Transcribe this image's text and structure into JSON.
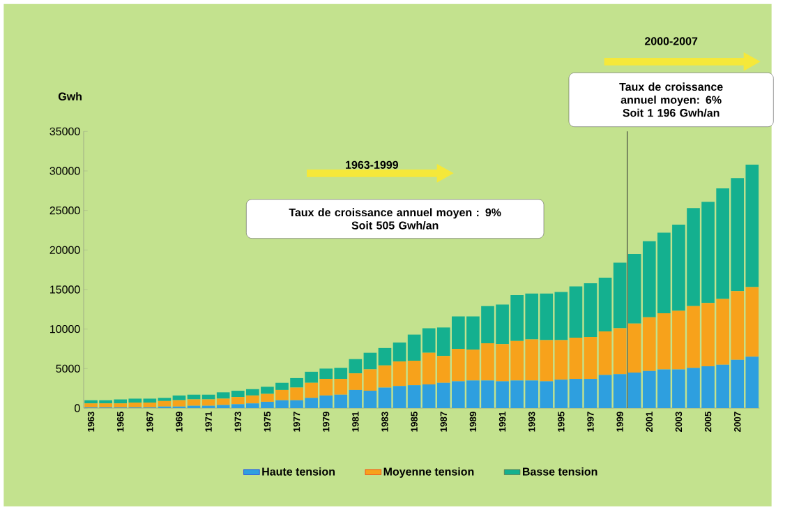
{
  "chart_data": {
    "type": "bar",
    "stacked": true,
    "ylabel": "Gwh",
    "legend": "bottom",
    "x": [
      1963,
      1964,
      1965,
      1966,
      1967,
      1968,
      1969,
      1970,
      1971,
      1972,
      1973,
      1974,
      1975,
      1976,
      1977,
      1978,
      1979,
      1980,
      1981,
      1982,
      1983,
      1984,
      1985,
      1986,
      1987,
      1988,
      1989,
      1990,
      1991,
      1992,
      1993,
      1994,
      1995,
      1996,
      1997,
      1998,
      1999,
      2000,
      2001,
      2002,
      2003,
      2004,
      2005,
      2006,
      2007,
      2008
    ],
    "xlim": [
      1962.5,
      2008.5
    ],
    "xticks": [
      1963,
      1965,
      1967,
      1969,
      1971,
      1973,
      1975,
      1977,
      1979,
      1981,
      1983,
      1985,
      1987,
      1989,
      1991,
      1993,
      1995,
      1997,
      1999,
      2001,
      2003,
      2005,
      2007
    ],
    "ylim": [
      0,
      35000
    ],
    "yticks": [
      0,
      5000,
      10000,
      15000,
      20000,
      25000,
      30000,
      35000
    ],
    "series": [
      {
        "name": "Haute tension",
        "color": "#2e9fdf",
        "values": [
          100,
          100,
          100,
          100,
          100,
          200,
          200,
          300,
          300,
          400,
          500,
          600,
          800,
          1000,
          1000,
          1300,
          1600,
          1700,
          2300,
          2200,
          2600,
          2800,
          2900,
          3000,
          3200,
          3400,
          3500,
          3500,
          3400,
          3500,
          3500,
          3400,
          3600,
          3700,
          3700,
          4200,
          4300,
          4500,
          4700,
          4900,
          4900,
          5100,
          5300,
          5500,
          6100,
          6500
        ]
      },
      {
        "name": "Moyenne tension",
        "color": "#f7a21b",
        "values": [
          500,
          500,
          500,
          600,
          600,
          700,
          800,
          800,
          800,
          800,
          900,
          1000,
          1000,
          1300,
          1600,
          1900,
          2100,
          2000,
          2100,
          2700,
          2800,
          3100,
          3100,
          4000,
          3400,
          4100,
          3900,
          4700,
          4700,
          5000,
          5200,
          5200,
          5000,
          5200,
          5300,
          5500,
          5800,
          6200,
          6800,
          7100,
          7400,
          7800,
          8000,
          8300,
          8700,
          8800
        ]
      },
      {
        "name": "Basse tension",
        "color": "#14b08f",
        "values": [
          400,
          400,
          500,
          500,
          500,
          400,
          600,
          600,
          600,
          800,
          800,
          800,
          900,
          900,
          1200,
          1400,
          1300,
          1400,
          1800,
          2100,
          2200,
          2400,
          3300,
          3100,
          3600,
          4100,
          4200,
          4700,
          5000,
          5800,
          5800,
          5900,
          6100,
          6500,
          6800,
          6800,
          8300,
          8800,
          9600,
          10200,
          10900,
          12400,
          12800,
          14000,
          14300,
          15500
        ]
      }
    ],
    "ref_lines": [
      {
        "axis": "x",
        "value": 1999.5,
        "color": "#333333"
      }
    ],
    "annotations": [
      "1963-1999",
      "Taux de croissance annuel moyen : 9%",
      "Soit 505 Gwh/an",
      "2000-2007",
      "Taux de croissance annuel moyen: 6%",
      "Soit 1 196 Gwh/an"
    ]
  }
}
